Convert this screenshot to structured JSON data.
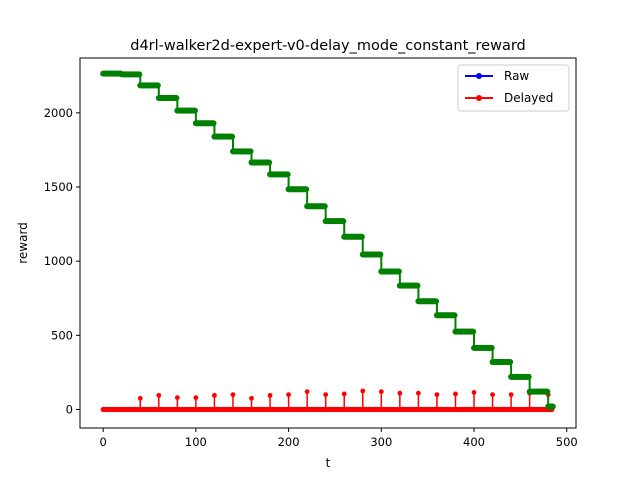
{
  "chart_data": {
    "type": "line",
    "title": "d4rl-walker2d-expert-v0-delay_mode_constant_reward",
    "xlabel": "t",
    "ylabel": "reward",
    "xlim": [
      -25,
      510
    ],
    "ylim": [
      -125,
      2370
    ],
    "x_ticks": [
      0,
      100,
      200,
      300,
      400,
      500
    ],
    "y_ticks": [
      0,
      500,
      1000,
      1500,
      2000
    ],
    "x_tick_labels": [
      "0",
      "100",
      "200",
      "300",
      "400",
      "500"
    ],
    "y_tick_labels": [
      "0",
      "500",
      "1000",
      "1500",
      "2000"
    ],
    "grid": false,
    "legend_position": "top-right",
    "series": [
      {
        "name": "Raw",
        "color": "#0000ff",
        "marker": "circle",
        "kind": "line",
        "x": [
          0,
          485
        ],
        "y": [
          2,
          2
        ]
      },
      {
        "name": "Delayed",
        "color": "#ff0000",
        "marker": "circle",
        "kind": "spikes",
        "baseline": 0,
        "x": [
          40,
          60,
          80,
          100,
          120,
          140,
          160,
          180,
          200,
          220,
          240,
          260,
          280,
          300,
          320,
          340,
          360,
          380,
          400,
          420,
          440,
          460,
          480
        ],
        "y": [
          75,
          95,
          80,
          80,
          95,
          100,
          75,
          95,
          100,
          120,
          100,
          105,
          125,
          120,
          110,
          110,
          100,
          105,
          115,
          100,
          100,
          110,
          100
        ]
      },
      {
        "name": "",
        "color": "#008000",
        "marker": "circle",
        "kind": "step",
        "x": [
          0,
          20,
          40,
          60,
          80,
          100,
          120,
          140,
          160,
          180,
          200,
          220,
          240,
          260,
          280,
          300,
          320,
          340,
          360,
          380,
          400,
          420,
          440,
          460,
          480,
          485
        ],
        "y": [
          2265,
          2260,
          2185,
          2100,
          2015,
          1930,
          1840,
          1740,
          1665,
          1585,
          1485,
          1370,
          1270,
          1165,
          1045,
          930,
          835,
          730,
          635,
          525,
          415,
          320,
          220,
          120,
          20,
          20
        ]
      }
    ]
  }
}
